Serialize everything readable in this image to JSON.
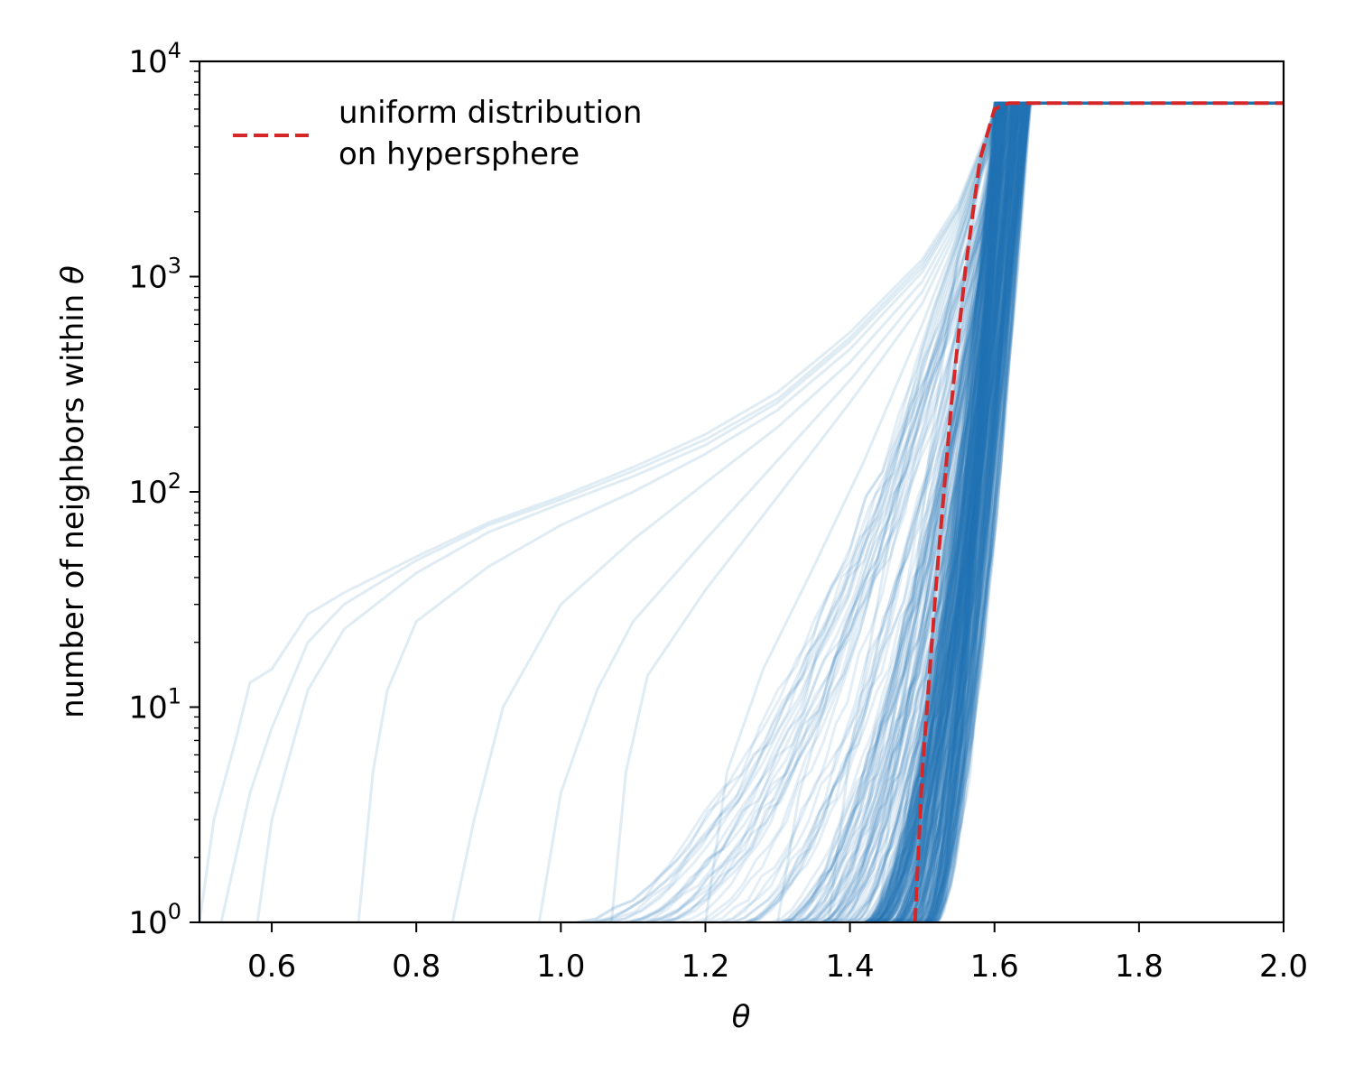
{
  "chart_data": {
    "type": "line",
    "title": "",
    "xlabel": "θ",
    "ylabel": "number of neighbors within θ",
    "xlim": [
      0.5,
      2.0
    ],
    "ylim": [
      1,
      10000
    ],
    "yscale": "log",
    "grid": false,
    "x_ticks": [
      0.6,
      0.8,
      1.0,
      1.2,
      1.4,
      1.6,
      1.8,
      2.0
    ],
    "x_tick_labels": [
      "0.6",
      "0.8",
      "1.0",
      "1.2",
      "1.4",
      "1.6",
      "1.8",
      "2.0"
    ],
    "y_ticks": [
      1,
      10,
      100,
      1000,
      10000
    ],
    "y_tick_labels": [
      {
        "base": "10",
        "exp": "0"
      },
      {
        "base": "10",
        "exp": "1"
      },
      {
        "base": "10",
        "exp": "2"
      },
      {
        "base": "10",
        "exp": "3"
      },
      {
        "base": "10",
        "exp": "4"
      }
    ],
    "colors": {
      "samples": "#1f77b4",
      "uniform": "#d62728"
    },
    "legend": {
      "placement": "upper-left",
      "entries": [
        {
          "label_line1": "uniform distribution",
          "label_line2": "on hypersphere",
          "style": "dashed",
          "color": "#d62728"
        }
      ]
    },
    "saturation_value": 6400,
    "uniform_curve": {
      "x": [
        1.49,
        1.5,
        1.52,
        1.54,
        1.56,
        1.58,
        1.6,
        1.62,
        2.0
      ],
      "y": [
        1,
        5,
        40,
        250,
        1100,
        3500,
        6000,
        6400,
        6400
      ]
    },
    "sample_curves_summary": {
      "count": 400,
      "onset_range": [
        0.5,
        1.5
      ],
      "note_onset_theta_of_first_neighbor_for_extreme_curves": [
        0.5,
        0.53,
        0.58
      ]
    },
    "sample_curves_examples": [
      {
        "x": [
          0.5,
          0.52,
          0.55,
          0.57,
          0.6,
          0.65,
          0.7,
          0.8,
          0.9,
          1.0,
          1.1,
          1.2,
          1.3,
          1.4,
          1.5,
          1.55,
          1.6,
          1.62
        ],
        "y": [
          1,
          3,
          7,
          13,
          15,
          27,
          34,
          50,
          72,
          95,
          130,
          185,
          290,
          550,
          1200,
          2200,
          5800,
          6400
        ]
      },
      {
        "x": [
          0.53,
          0.57,
          0.6,
          0.65,
          0.7,
          0.8,
          0.9,
          1.0,
          1.1,
          1.2,
          1.3,
          1.4,
          1.5,
          1.55,
          1.6,
          1.62
        ],
        "y": [
          1,
          4,
          8,
          20,
          30,
          48,
          70,
          92,
          125,
          175,
          270,
          520,
          1150,
          2100,
          5700,
          6400
        ]
      },
      {
        "x": [
          0.58,
          0.6,
          0.65,
          0.7,
          0.8,
          0.9,
          1.0,
          1.1,
          1.2,
          1.3,
          1.4,
          1.5,
          1.55,
          1.6,
          1.62
        ],
        "y": [
          1,
          3,
          12,
          23,
          42,
          65,
          88,
          118,
          165,
          260,
          500,
          1100,
          2050,
          5600,
          6400
        ]
      },
      {
        "x": [
          0.72,
          0.74,
          0.76,
          0.8,
          0.9,
          1.0,
          1.1,
          1.2,
          1.3,
          1.4,
          1.5,
          1.55,
          1.6,
          1.62
        ],
        "y": [
          1,
          5,
          12,
          25,
          45,
          70,
          100,
          150,
          240,
          460,
          1050,
          2000,
          5500,
          6400
        ]
      },
      {
        "x": [
          0.85,
          0.88,
          0.92,
          1.0,
          1.1,
          1.2,
          1.3,
          1.4,
          1.5,
          1.55,
          1.6,
          1.62
        ],
        "y": [
          1,
          3,
          10,
          30,
          60,
          110,
          200,
          400,
          950,
          1900,
          5400,
          6400
        ]
      },
      {
        "x": [
          0.97,
          1.0,
          1.05,
          1.1,
          1.2,
          1.3,
          1.4,
          1.5,
          1.55,
          1.6,
          1.62
        ],
        "y": [
          1,
          4,
          12,
          25,
          60,
          140,
          330,
          850,
          1800,
          5300,
          6400
        ]
      },
      {
        "x": [
          1.07,
          1.09,
          1.12,
          1.2,
          1.3,
          1.4,
          1.5,
          1.55,
          1.6,
          1.62
        ],
        "y": [
          1,
          5,
          14,
          35,
          95,
          260,
          750,
          1700,
          5200,
          6400
        ]
      },
      {
        "x": [
          1.2,
          1.23,
          1.28,
          1.35,
          1.42,
          1.5,
          1.55,
          1.6,
          1.62
        ],
        "y": [
          1,
          5,
          15,
          45,
          140,
          600,
          1600,
          5100,
          6400
        ]
      },
      {
        "x": [
          1.3,
          1.33,
          1.38,
          1.44,
          1.5,
          1.55,
          1.6,
          1.62
        ],
        "y": [
          1,
          4,
          15,
          70,
          450,
          1500,
          5000,
          6400
        ]
      },
      {
        "x": [
          1.37,
          1.4,
          1.45,
          1.5,
          1.55,
          1.6,
          1.62
        ],
        "y": [
          1,
          6,
          50,
          400,
          1450,
          4900,
          6400
        ]
      },
      {
        "x": [
          1.44,
          1.47,
          1.51,
          1.55,
          1.6,
          1.63
        ],
        "y": [
          1,
          10,
          150,
          1300,
          4700,
          6400
        ]
      },
      {
        "x": [
          1.5,
          1.52,
          1.55,
          1.58,
          1.62,
          1.66
        ],
        "y": [
          1,
          20,
          600,
          3000,
          5800,
          6400
        ]
      }
    ]
  }
}
